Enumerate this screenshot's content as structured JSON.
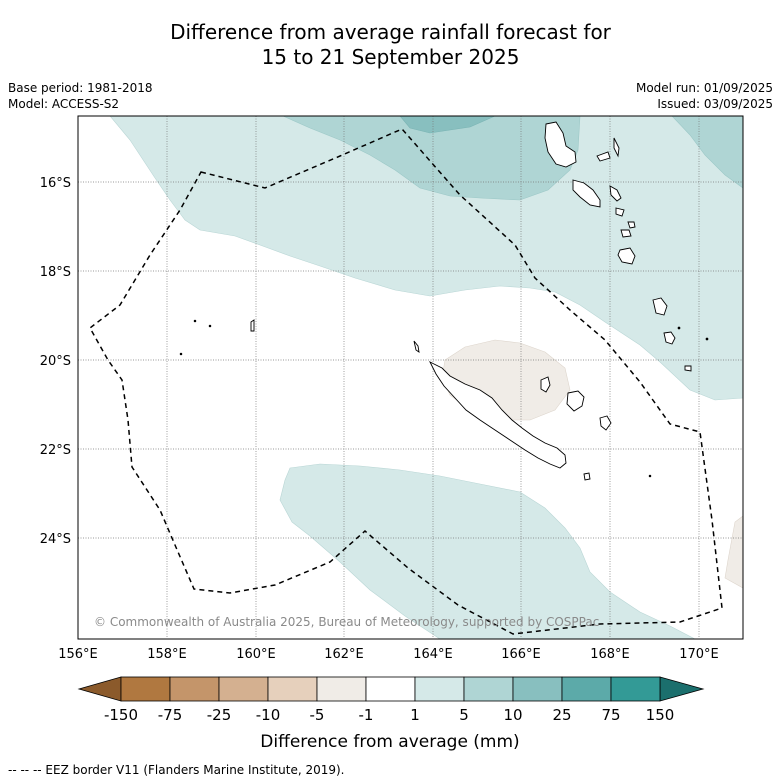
{
  "title": {
    "line1": "Difference from average rainfall forecast for",
    "line2": "15 to 21 September 2025"
  },
  "meta": {
    "base_period": "Base period: 1981-2018",
    "model": "Model: ACCESS-S2",
    "model_run": "Model run: 01/09/2025",
    "issued": "Issued: 03/09/2025"
  },
  "map": {
    "lat_labels": [
      "16°S",
      "18°S",
      "20°S",
      "22°S",
      "24°S"
    ],
    "lon_labels": [
      "156°E",
      "158°E",
      "160°E",
      "162°E",
      "164°E",
      "166°E",
      "168°E",
      "170°E"
    ],
    "credit": "© Commonwealth of Australia 2025, Bureau of Meteorology, supported by COSPPac"
  },
  "colorbar": {
    "labels": [
      "-150",
      "-75",
      "-25",
      "-10",
      "-5",
      "-1",
      "1",
      "5",
      "10",
      "25",
      "75",
      "150"
    ],
    "colors": [
      "#8b5a2b",
      "#b07840",
      "#c4956a",
      "#d4b090",
      "#e6d0bc",
      "#f0ece7",
      "#ffffff",
      "#d5e9e8",
      "#afd5d4",
      "#88bfbf",
      "#5caaa9",
      "#339a96",
      "#1b6f6d"
    ],
    "title": "Difference from average (mm)"
  },
  "footer": "--  --  -- EEZ border V11 (Flanders Marine Institute, 2019)."
}
